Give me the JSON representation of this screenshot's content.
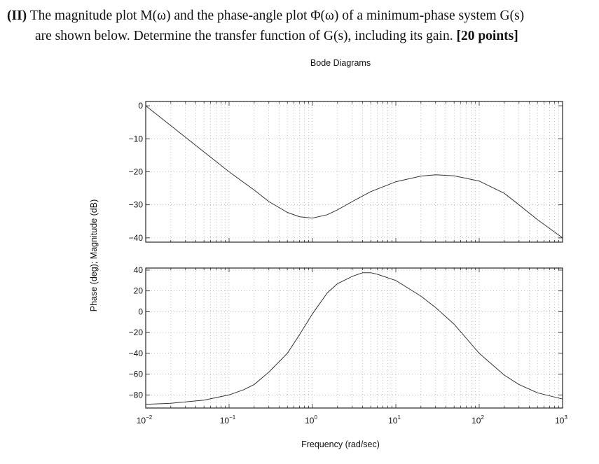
{
  "question": {
    "number": "(II)",
    "line1_text": "The magnitude plot M(ω) and the phase-angle plot Φ(ω) of a minimum-phase system G(s)",
    "line2_text": "are shown below. Determine the transfer function of G(s), including its gain.",
    "points": "[20 points]"
  },
  "chart_data": [
    {
      "type": "line",
      "title": "Bode Diagrams",
      "panel": "magnitude",
      "xscale": "log",
      "xlim": [
        0.01,
        1000
      ],
      "ylim": [
        -41.3,
        1.3
      ],
      "grid": true,
      "yticks": [
        0,
        -10,
        -20,
        -30,
        -40
      ],
      "ytick_labels": [
        "0",
        "−10",
        "−20",
        "−30",
        "−40"
      ],
      "x": [
        0.01,
        0.1,
        0.2,
        0.3,
        0.5,
        0.7,
        1,
        1.5,
        2,
        3,
        5,
        10,
        20,
        30,
        50,
        100,
        200,
        300,
        500,
        1000
      ],
      "y": [
        0,
        -20,
        -25.5,
        -29,
        -32.3,
        -33.6,
        -34,
        -33,
        -31.5,
        -29,
        -26,
        -23,
        -21.3,
        -20.9,
        -21.2,
        -22.8,
        -26.5,
        -30,
        -34.5,
        -40
      ]
    },
    {
      "type": "line",
      "panel": "phase",
      "xscale": "log",
      "xlim": [
        0.01,
        1000
      ],
      "ylim": [
        -92.6,
        42
      ],
      "grid": true,
      "yticks": [
        40,
        20,
        0,
        -20,
        -40,
        -60,
        -80
      ],
      "ytick_labels": [
        "40",
        "20",
        "0",
        "−20",
        "−40",
        "−60",
        "−80"
      ],
      "xticks": [
        0.01,
        0.1,
        1,
        10,
        100,
        1000
      ],
      "xtick_bases": [
        "10",
        "10",
        "10",
        "10",
        "10",
        "10"
      ],
      "xtick_exponents": [
        "−2",
        "−1",
        "0",
        "1",
        "2",
        "3"
      ],
      "x": [
        0.01,
        0.02,
        0.05,
        0.1,
        0.15,
        0.2,
        0.3,
        0.5,
        0.7,
        1,
        1.5,
        2,
        3,
        4,
        5,
        6,
        10,
        20,
        30,
        50,
        100,
        200,
        300,
        500,
        1000
      ],
      "y": [
        -89,
        -88,
        -85,
        -80,
        -75,
        -70,
        -58,
        -40,
        -22,
        -2,
        18,
        27,
        34,
        37.5,
        37.5,
        36,
        30,
        15,
        4,
        -12,
        -40,
        -61,
        -70,
        -78,
        -84
      ],
      "xlabel": "Frequency (rad/sec)"
    }
  ],
  "shared_ylabel": "Phase (deg); Magnitude (dB)",
  "colors": {
    "line": "#333333",
    "grid": "#9a9a9a",
    "axes": "#111111"
  }
}
